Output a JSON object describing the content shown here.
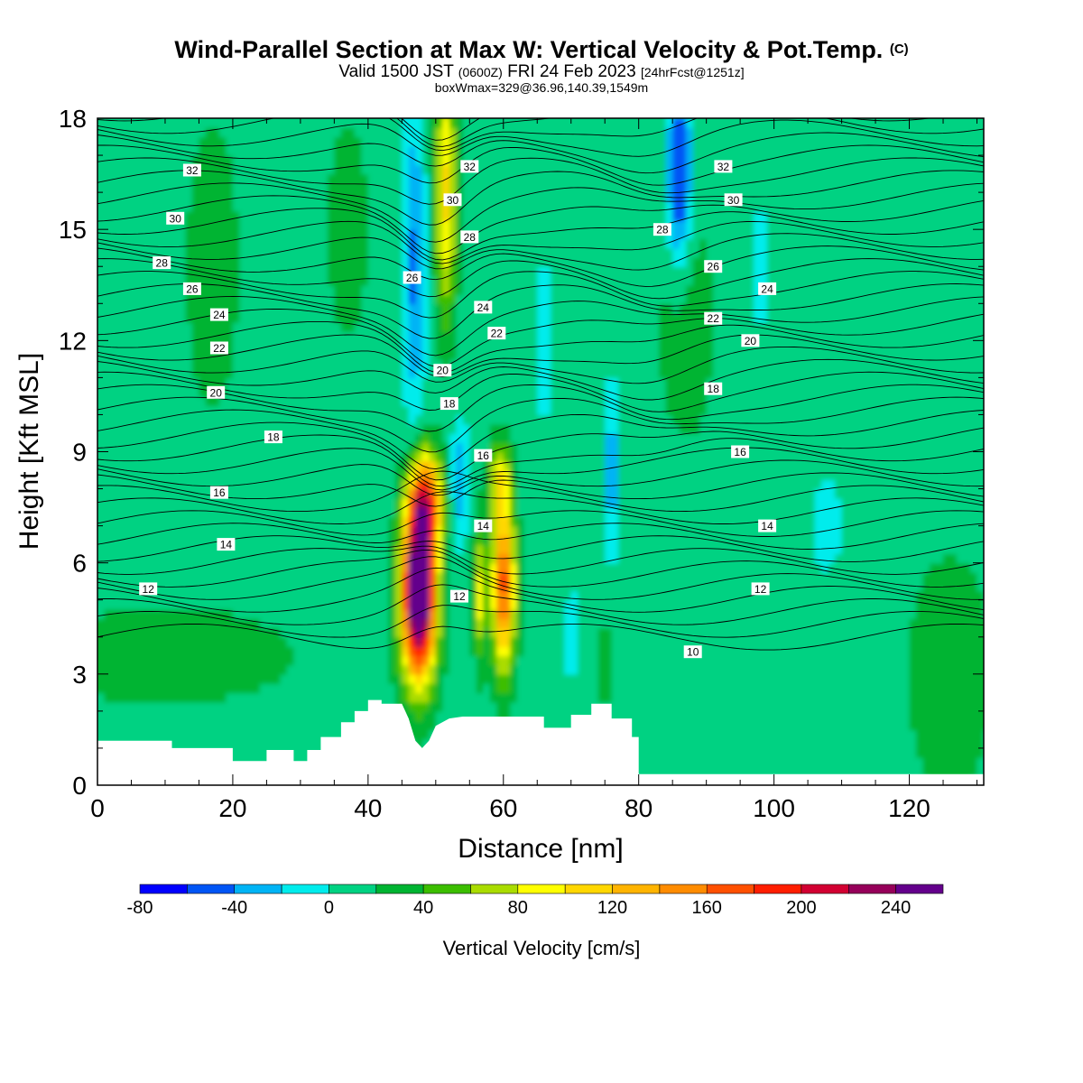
{
  "title": {
    "main": "Wind-Parallel Section at Max W: Vertical Velocity & Pot.Temp.",
    "copyright": "(C)",
    "valid_prefix": "Valid 1500 JST",
    "valid_utc": "(0600Z)",
    "valid_date": "FRI 24 Feb 2023",
    "forecast": "[24hrFcst@1251z]",
    "boxwmax": "boxWmax=329@36.96,140.39,1549m"
  },
  "chart_data": {
    "type": "heatmap",
    "xlabel": "Distance [nm]",
    "ylabel": "Height [Kft MSL]",
    "xlim": [
      0,
      131
    ],
    "ylim": [
      0,
      18
    ],
    "x_ticks": [
      0,
      20,
      40,
      60,
      80,
      100,
      120
    ],
    "y_ticks": [
      0,
      3,
      6,
      9,
      12,
      15,
      18
    ],
    "colorbar": {
      "label": "Vertical Velocity [cm/s]",
      "levels": [
        -80,
        -60,
        -40,
        -20,
        0,
        20,
        40,
        60,
        80,
        100,
        120,
        140,
        160,
        180,
        200,
        220,
        240,
        260
      ],
      "tick_labels": [
        "-80",
        "-40",
        "0",
        "40",
        "80",
        "120",
        "160",
        "200",
        "240"
      ],
      "tick_values": [
        -80,
        -40,
        0,
        40,
        80,
        120,
        160,
        200,
        240
      ],
      "colors": [
        "#0000ff",
        "#0055f5",
        "#00b4f5",
        "#00ecec",
        "#00d282",
        "#00b432",
        "#3cbe00",
        "#aadc00",
        "#ffff00",
        "#ffd700",
        "#ffb400",
        "#ff8c00",
        "#ff5000",
        "#ff1e00",
        "#d20032",
        "#96005a",
        "#64008c"
      ]
    },
    "theta_labels": [
      {
        "x": 14,
        "y": 16.6,
        "v": "32"
      },
      {
        "x": 11.5,
        "y": 15.3,
        "v": "30"
      },
      {
        "x": 9.5,
        "y": 14.1,
        "v": "28"
      },
      {
        "x": 14,
        "y": 13.4,
        "v": "26"
      },
      {
        "x": 18,
        "y": 12.7,
        "v": "24"
      },
      {
        "x": 18,
        "y": 11.8,
        "v": "22"
      },
      {
        "x": 17.5,
        "y": 10.6,
        "v": "20"
      },
      {
        "x": 26,
        "y": 9.4,
        "v": "18"
      },
      {
        "x": 18,
        "y": 7.9,
        "v": "16"
      },
      {
        "x": 19,
        "y": 6.5,
        "v": "14"
      },
      {
        "x": 7.5,
        "y": 5.3,
        "v": "12"
      },
      {
        "x": 55,
        "y": 16.7,
        "v": "32"
      },
      {
        "x": 52.5,
        "y": 15.8,
        "v": "30"
      },
      {
        "x": 55,
        "y": 14.8,
        "v": "28"
      },
      {
        "x": 46.5,
        "y": 13.7,
        "v": "26"
      },
      {
        "x": 57,
        "y": 12.9,
        "v": "24"
      },
      {
        "x": 59,
        "y": 12.2,
        "v": "22"
      },
      {
        "x": 51,
        "y": 11.2,
        "v": "20"
      },
      {
        "x": 52,
        "y": 10.3,
        "v": "18"
      },
      {
        "x": 57,
        "y": 8.9,
        "v": "16"
      },
      {
        "x": 57,
        "y": 7,
        "v": "14"
      },
      {
        "x": 53.5,
        "y": 5.1,
        "v": "12"
      },
      {
        "x": 92.5,
        "y": 16.7,
        "v": "32"
      },
      {
        "x": 94,
        "y": 15.8,
        "v": "30"
      },
      {
        "x": 83.5,
        "y": 15,
        "v": "28"
      },
      {
        "x": 91,
        "y": 14,
        "v": "26"
      },
      {
        "x": 99,
        "y": 13.4,
        "v": "24"
      },
      {
        "x": 91,
        "y": 12.6,
        "v": "22"
      },
      {
        "x": 96.5,
        "y": 12,
        "v": "20"
      },
      {
        "x": 91,
        "y": 10.7,
        "v": "18"
      },
      {
        "x": 95,
        "y": 9,
        "v": "16"
      },
      {
        "x": 99,
        "y": 7,
        "v": "14"
      },
      {
        "x": 98,
        "y": 5.3,
        "v": "12"
      },
      {
        "x": 88,
        "y": 3.6,
        "v": "10"
      }
    ],
    "peak_w": 329
  }
}
